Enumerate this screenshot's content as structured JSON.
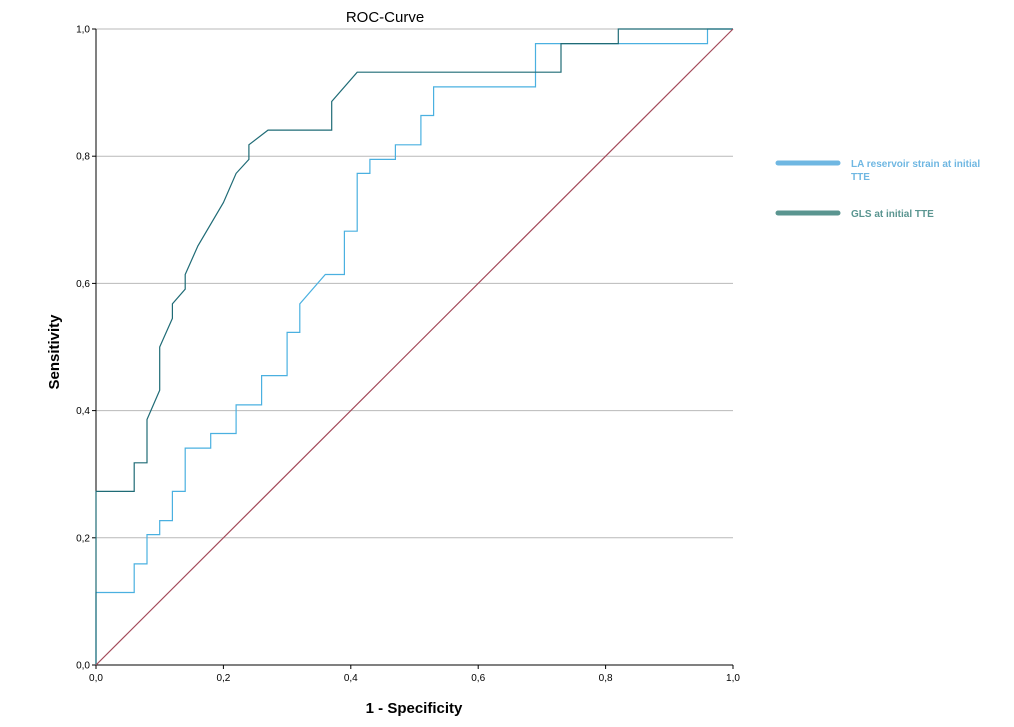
{
  "chart_data": {
    "type": "line",
    "title": "ROC-Curve",
    "xlabel": "1 - Specificity",
    "ylabel": "Sensitivity",
    "xlim": [
      0,
      1
    ],
    "ylim": [
      0,
      1
    ],
    "x_ticks": [
      "0,0",
      "0,2",
      "0,4",
      "0,6",
      "0,8",
      "1,0"
    ],
    "y_ticks": [
      "0,0",
      "0,2",
      "0,4",
      "0,6",
      "0,8",
      "1,0"
    ],
    "grid": "horizontal",
    "legend_position": "right",
    "series": [
      {
        "name": "LA reservoir strain at initial TTE",
        "name_lines": [
          "LA reservoir strain at initial",
          "TTE"
        ],
        "color": "#4ab0e0",
        "legend_color": "#6fb7e2",
        "legend_text_color": "#6fb7e2",
        "x": [
          0,
          0,
          0.06,
          0.06,
          0.08,
          0.08,
          0.1,
          0.1,
          0.12,
          0.12,
          0.14,
          0.14,
          0.18,
          0.18,
          0.22,
          0.22,
          0.26,
          0.26,
          0.3,
          0.3,
          0.32,
          0.32,
          0.36,
          0.39,
          0.39,
          0.41,
          0.41,
          0.43,
          0.43,
          0.47,
          0.47,
          0.51,
          0.51,
          0.53,
          0.53,
          0.69,
          0.69,
          0.96,
          0.96,
          1.0
        ],
        "y": [
          0,
          0.114,
          0.114,
          0.159,
          0.159,
          0.205,
          0.205,
          0.227,
          0.227,
          0.273,
          0.273,
          0.341,
          0.341,
          0.364,
          0.364,
          0.409,
          0.409,
          0.455,
          0.455,
          0.523,
          0.523,
          0.568,
          0.614,
          0.614,
          0.682,
          0.682,
          0.773,
          0.773,
          0.795,
          0.795,
          0.818,
          0.818,
          0.864,
          0.864,
          0.909,
          0.909,
          0.977,
          0.977,
          1.0,
          1.0
        ]
      },
      {
        "name": "GLS at initial TTE",
        "name_lines": [
          "GLS at initial TTE"
        ],
        "color": "#1f6b76",
        "legend_color": "#5a9590",
        "legend_text_color": "#5a9590",
        "x": [
          0,
          0,
          0.06,
          0.06,
          0.08,
          0.08,
          0.1,
          0.1,
          0.12,
          0.12,
          0.14,
          0.14,
          0.16,
          0.2,
          0.22,
          0.24,
          0.24,
          0.27,
          0.37,
          0.37,
          0.41,
          0.69,
          0.73,
          0.73,
          0.82,
          0.82,
          1.0
        ],
        "y": [
          0,
          0.273,
          0.273,
          0.318,
          0.318,
          0.386,
          0.432,
          0.5,
          0.545,
          0.568,
          0.591,
          0.614,
          0.659,
          0.727,
          0.773,
          0.795,
          0.818,
          0.841,
          0.841,
          0.886,
          0.932,
          0.932,
          0.932,
          0.977,
          0.977,
          1.0,
          1.0
        ]
      },
      {
        "name": "",
        "role": "reference-line",
        "color": "#a34a5a",
        "x": [
          0,
          1
        ],
        "y": [
          0,
          1
        ]
      }
    ]
  }
}
